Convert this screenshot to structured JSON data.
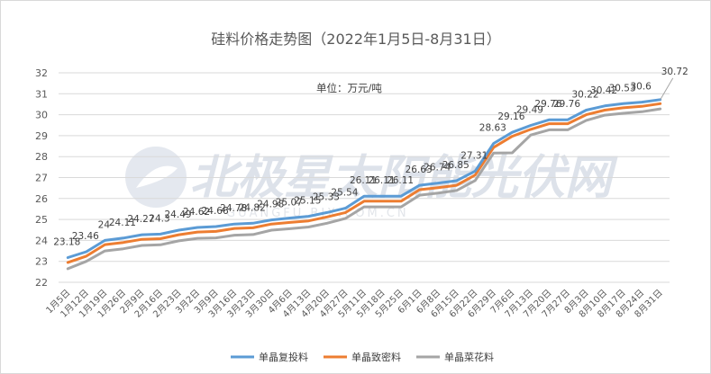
{
  "chart_data": {
    "type": "line",
    "title": "硅料价格走势图（2022年1月5日-8月31日）",
    "unit_label": "单位：万元/吨",
    "watermark": "北极星太阳能光伏网",
    "watermark_sub": "GUANGFU.BJX.COM.CN",
    "ylim": [
      22,
      32
    ],
    "yticks": [
      "22",
      "23",
      "24",
      "25",
      "26",
      "27",
      "28",
      "29",
      "30",
      "31",
      "32"
    ],
    "grid": true,
    "legend_position": "bottom",
    "categories": [
      "1月5日",
      "1月12日",
      "1月19日",
      "1月26日",
      "2月9日",
      "2月16日",
      "2月23日",
      "3月2日",
      "3月9日",
      "3月16日",
      "3月23日",
      "3月30日",
      "4月6日",
      "4月13日",
      "4月20日",
      "4月27日",
      "5月11日",
      "5月18日",
      "5月25日",
      "6月1日",
      "6月8日",
      "6月15日",
      "6月22日",
      "6月29日",
      "7月6日",
      "7月13日",
      "7月20日",
      "7月27日",
      "8月3日",
      "8月10日",
      "8月17日",
      "8月24日",
      "8月31日"
    ],
    "series": [
      {
        "name": "单晶复投料",
        "color": "#5b9bd5",
        "values": [
          23.18,
          23.46,
          24.0,
          24.11,
          24.27,
          24.3,
          24.49,
          24.62,
          24.66,
          24.78,
          24.82,
          24.98,
          25.07,
          25.15,
          25.33,
          25.54,
          26.11,
          26.11,
          26.11,
          26.63,
          26.74,
          26.85,
          27.31,
          28.63,
          29.16,
          29.49,
          29.76,
          29.76,
          30.22,
          30.42,
          30.53,
          30.6,
          30.72
        ],
        "labels": [
          "23.18",
          "23.46",
          "24",
          "24.11",
          "24.27",
          "24.3",
          "24.49",
          "24.62",
          "24.66",
          "24.78",
          "24.82",
          "24.98",
          "25.07",
          "25.15",
          "25.33",
          "25.54",
          "26.11",
          "26.11",
          "26.11",
          "26.63",
          "26.74",
          "26.85",
          "27.31",
          "28.63",
          "29.16",
          "29.49",
          "29.76",
          "29.76",
          "30.22",
          "30.42",
          "30.53",
          "30.6",
          "30.72"
        ]
      },
      {
        "name": "单晶致密料",
        "color": "#ed7d31",
        "values": [
          22.95,
          23.25,
          23.8,
          23.9,
          24.05,
          24.08,
          24.27,
          24.4,
          24.43,
          24.57,
          24.6,
          24.78,
          24.86,
          24.93,
          25.12,
          25.33,
          25.87,
          25.87,
          25.87,
          26.42,
          26.52,
          26.63,
          27.12,
          28.44,
          28.97,
          29.3,
          29.57,
          29.57,
          30.0,
          30.22,
          30.33,
          30.4,
          30.53
        ]
      },
      {
        "name": "单晶菜花料",
        "color": "#a5a5a5",
        "values": [
          22.65,
          23.0,
          23.5,
          23.6,
          23.76,
          23.79,
          23.98,
          24.1,
          24.12,
          24.25,
          24.28,
          24.49,
          24.56,
          24.64,
          24.82,
          25.05,
          25.6,
          25.6,
          25.6,
          26.16,
          26.26,
          26.38,
          26.86,
          28.17,
          28.18,
          29.03,
          29.28,
          29.28,
          29.73,
          29.98,
          30.07,
          30.14,
          30.28
        ]
      }
    ]
  }
}
